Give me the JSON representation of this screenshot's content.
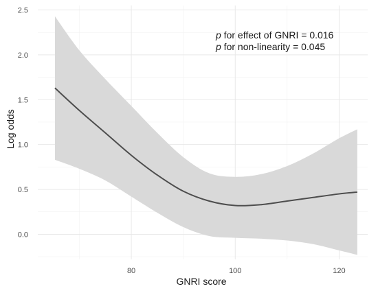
{
  "chart_data": {
    "type": "line",
    "title": "",
    "xlabel": "GNRI score",
    "ylabel": "Log odds",
    "xlim": [
      62,
      125.5
    ],
    "ylim": [
      -0.28,
      2.55
    ],
    "x_ticks": [
      80,
      100,
      120
    ],
    "x_tick_labels": [
      "80",
      "100",
      "120"
    ],
    "y_ticks": [
      0.0,
      0.5,
      1.0,
      1.5,
      2.0,
      2.5
    ],
    "y_tick_labels": [
      "0.0",
      "0.5",
      "1.0",
      "1.5",
      "2.0",
      "2.5"
    ],
    "grid": true,
    "series": [
      {
        "values": [
          {
            "x": 65.3,
            "y": 1.63
          },
          {
            "x": 70,
            "y": 1.38
          },
          {
            "x": 75,
            "y": 1.13
          },
          {
            "x": 80,
            "y": 0.88
          },
          {
            "x": 85,
            "y": 0.66
          },
          {
            "x": 90,
            "y": 0.48
          },
          {
            "x": 95,
            "y": 0.37
          },
          {
            "x": 100,
            "y": 0.32
          },
          {
            "x": 105,
            "y": 0.33
          },
          {
            "x": 110,
            "y": 0.37
          },
          {
            "x": 115,
            "y": 0.41
          },
          {
            "x": 120,
            "y": 0.45
          },
          {
            "x": 123.5,
            "y": 0.47
          }
        ],
        "ci_upper": [
          2.43,
          2.05,
          1.73,
          1.43,
          1.13,
          0.86,
          0.68,
          0.64,
          0.67,
          0.76,
          0.9,
          1.07,
          1.17
        ],
        "ci_lower": [
          0.83,
          0.73,
          0.6,
          0.42,
          0.24,
          0.08,
          -0.02,
          -0.04,
          -0.05,
          -0.07,
          -0.11,
          -0.18,
          -0.23
        ],
        "color": "#4d4d4d",
        "band_color": "#d9d9d9"
      }
    ],
    "annotations": [
      {
        "italic": "p",
        "text": " for effect of GNRI = 0.016"
      },
      {
        "italic": "p",
        "text": " for non-linearity = 0.045"
      }
    ]
  }
}
